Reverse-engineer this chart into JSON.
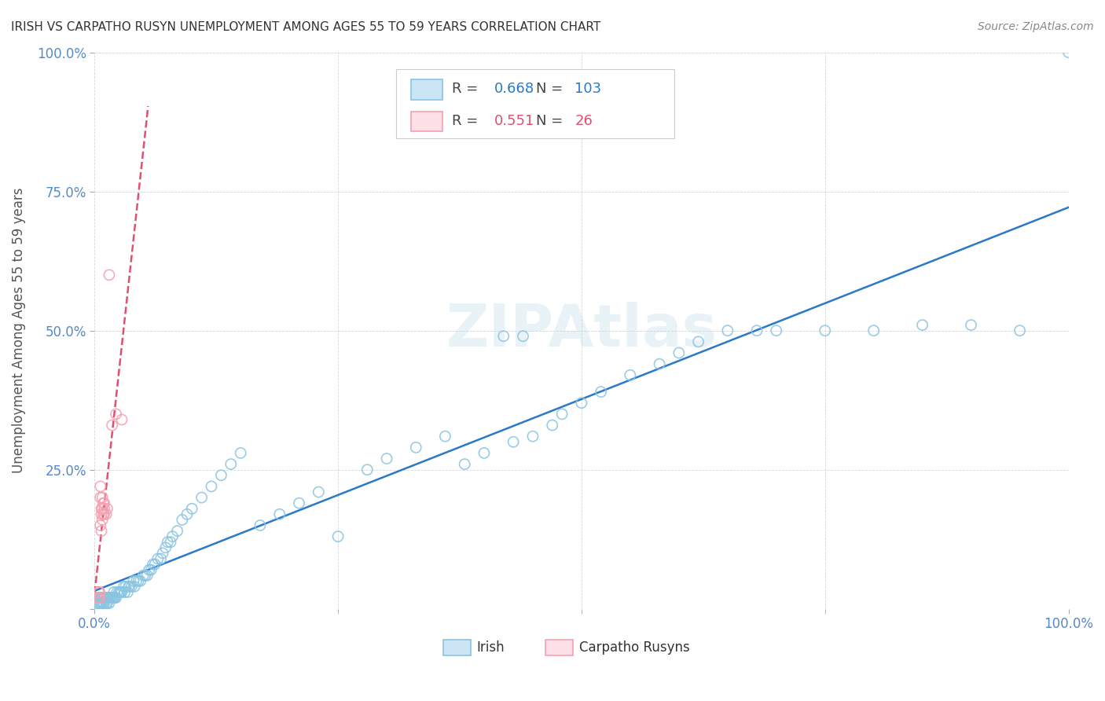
{
  "title": "IRISH VS CARPATHO RUSYN UNEMPLOYMENT AMONG AGES 55 TO 59 YEARS CORRELATION CHART",
  "source": "Source: ZipAtlas.com",
  "ylabel": "Unemployment Among Ages 55 to 59 years",
  "xlim": [
    0,
    1.0
  ],
  "ylim": [
    0,
    1.0
  ],
  "irish_R": 0.668,
  "irish_N": 103,
  "rusyn_R": 0.551,
  "rusyn_N": 26,
  "irish_color": "#89c4e1",
  "rusyn_color": "#f4a0b0",
  "irish_line_color": "#2979c8",
  "rusyn_line_color": "#e05070",
  "title_color": "#333333",
  "tick_color": "#5588cc",
  "irish_x": [
    0.002,
    0.003,
    0.004,
    0.005,
    0.005,
    0.006,
    0.006,
    0.007,
    0.007,
    0.008,
    0.008,
    0.009,
    0.009,
    0.01,
    0.01,
    0.01,
    0.012,
    0.012,
    0.013,
    0.013,
    0.014,
    0.015,
    0.015,
    0.016,
    0.017,
    0.018,
    0.019,
    0.02,
    0.02,
    0.021,
    0.022,
    0.023,
    0.025,
    0.026,
    0.027,
    0.028,
    0.03,
    0.031,
    0.032,
    0.034,
    0.035,
    0.036,
    0.038,
    0.04,
    0.041,
    0.043,
    0.045,
    0.047,
    0.05,
    0.052,
    0.054,
    0.056,
    0.058,
    0.06,
    0.062,
    0.065,
    0.068,
    0.07,
    0.073,
    0.075,
    0.078,
    0.08,
    0.085,
    0.09,
    0.095,
    0.1,
    0.11,
    0.12,
    0.13,
    0.14,
    0.15,
    0.17,
    0.19,
    0.21,
    0.23,
    0.25,
    0.28,
    0.3,
    0.33,
    0.36,
    0.38,
    0.4,
    0.43,
    0.45,
    0.47,
    0.48,
    0.5,
    0.52,
    0.55,
    0.58,
    0.6,
    0.62,
    0.65,
    0.68,
    0.7,
    0.75,
    0.8,
    0.85,
    0.9,
    0.95,
    1.0,
    0.42,
    0.44
  ],
  "irish_y": [
    0.01,
    0.02,
    0.01,
    0.02,
    0.01,
    0.02,
    0.01,
    0.02,
    0.01,
    0.02,
    0.01,
    0.02,
    0.01,
    0.02,
    0.01,
    0.02,
    0.02,
    0.01,
    0.02,
    0.01,
    0.02,
    0.02,
    0.01,
    0.02,
    0.02,
    0.02,
    0.02,
    0.02,
    0.03,
    0.02,
    0.02,
    0.03,
    0.03,
    0.03,
    0.03,
    0.03,
    0.04,
    0.03,
    0.04,
    0.03,
    0.04,
    0.04,
    0.04,
    0.05,
    0.04,
    0.05,
    0.05,
    0.05,
    0.06,
    0.06,
    0.06,
    0.07,
    0.07,
    0.08,
    0.08,
    0.09,
    0.09,
    0.1,
    0.11,
    0.12,
    0.12,
    0.13,
    0.14,
    0.16,
    0.17,
    0.18,
    0.2,
    0.22,
    0.24,
    0.26,
    0.28,
    0.15,
    0.17,
    0.19,
    0.21,
    0.13,
    0.25,
    0.27,
    0.29,
    0.31,
    0.26,
    0.28,
    0.3,
    0.31,
    0.33,
    0.35,
    0.37,
    0.39,
    0.42,
    0.44,
    0.46,
    0.48,
    0.5,
    0.5,
    0.5,
    0.5,
    0.5,
    0.51,
    0.51,
    0.5,
    1.0,
    0.49,
    0.49
  ],
  "rusyn_x": [
    0.003,
    0.004,
    0.004,
    0.005,
    0.005,
    0.005,
    0.006,
    0.006,
    0.006,
    0.007,
    0.007,
    0.007,
    0.008,
    0.008,
    0.008,
    0.009,
    0.009,
    0.01,
    0.01,
    0.01,
    0.012,
    0.013,
    0.015,
    0.018,
    0.022,
    0.028
  ],
  "rusyn_y": [
    0.02,
    0.03,
    0.02,
    0.03,
    0.02,
    0.03,
    0.15,
    0.2,
    0.22,
    0.18,
    0.14,
    0.17,
    0.16,
    0.18,
    0.2,
    0.17,
    0.19,
    0.17,
    0.18,
    0.19,
    0.17,
    0.18,
    0.6,
    0.33,
    0.35,
    0.34
  ]
}
